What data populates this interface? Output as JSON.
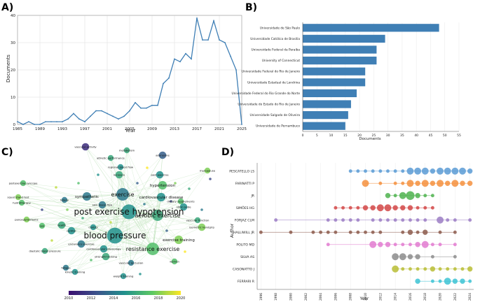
{
  "panels": {
    "A": "A)",
    "B": "B)",
    "C": "C)",
    "D": "D)"
  },
  "chart_data": [
    {
      "type": "line",
      "panel": "A",
      "xlabel": "Year",
      "ylabel": "Documents",
      "xlim": [
        1985,
        2025
      ],
      "ylim": [
        0,
        40
      ],
      "xticks": [
        1985,
        1989,
        1993,
        1997,
        2001,
        2005,
        2009,
        2013,
        2017,
        2021,
        2025
      ],
      "yticks": [
        0,
        10,
        20,
        30,
        40
      ],
      "grid": true,
      "color": "#3f7fb5",
      "x": [
        1985,
        1986,
        1987,
        1988,
        1989,
        1990,
        1991,
        1992,
        1993,
        1994,
        1995,
        1996,
        1997,
        1998,
        1999,
        2000,
        2001,
        2002,
        2003,
        2004,
        2005,
        2006,
        2007,
        2008,
        2009,
        2010,
        2011,
        2012,
        2013,
        2014,
        2015,
        2016,
        2017,
        2018,
        2019,
        2020,
        2021,
        2022,
        2023,
        2024,
        2025
      ],
      "y": [
        1,
        0,
        1,
        0,
        0,
        1,
        1,
        1,
        1,
        2,
        4,
        2,
        1,
        3,
        5,
        5,
        4,
        3,
        2,
        3,
        5,
        8,
        6,
        6,
        7,
        7,
        15,
        17,
        24,
        23,
        26,
        24,
        39,
        31,
        31,
        38,
        31,
        30,
        25,
        20,
        0
      ]
    },
    {
      "type": "bar",
      "orientation": "horizontal",
      "panel": "B",
      "xlabel": "Documents",
      "xlim": [
        0,
        55
      ],
      "xticks": [
        0,
        5,
        10,
        15,
        20,
        25,
        30,
        35,
        40,
        45,
        50,
        55
      ],
      "color": "#3f7fb5",
      "categories": [
        "Universidade de São Paulo",
        "Universidade Católica de Brasília",
        "Universidade Federal da Paraíba",
        "University of Connecticut",
        "Universidade Federal do Rio de Janeiro",
        "Universidade Estadual de Londrina",
        "Universidade Federal do Rio Grande do Norte",
        "Universidade do Estado do Rio de Janeiro",
        "Universidade Salgado de Oliveira",
        "Universidade de Pernambuco"
      ],
      "values": [
        48,
        29,
        26,
        26,
        22,
        22,
        19,
        17,
        16,
        15
      ]
    },
    {
      "type": "scatter",
      "subtype": "keyword-network",
      "panel": "C",
      "colorbar": {
        "min": 2010,
        "max": 2020,
        "ticks": [
          2010,
          2012,
          2014,
          2016,
          2018,
          2020
        ]
      },
      "nodes": [
        {
          "label": "vascular activity",
          "year": 2011,
          "weight": 2
        },
        {
          "label": "metabolism",
          "year": 2016,
          "weight": 1
        },
        {
          "label": "adenosine",
          "year": 2013,
          "weight": 2
        },
        {
          "label": "athletic performance",
          "year": 2016,
          "weight": 1
        },
        {
          "label": "regional blood flow",
          "year": 2015,
          "weight": 1
        },
        {
          "label": "recovery",
          "year": 2016,
          "weight": 2
        },
        {
          "label": "post exercise",
          "year": 2015,
          "weight": 2
        },
        {
          "label": "menopause",
          "year": 2018,
          "weight": 1
        },
        {
          "label": "hypertension",
          "year": 2017,
          "weight": 3
        },
        {
          "label": "postexercise syncope",
          "year": 2017,
          "weight": 1
        },
        {
          "label": "sympathetic",
          "year": 2014,
          "weight": 3
        },
        {
          "label": "exercise",
          "year": 2014,
          "weight": 8
        },
        {
          "label": "cardiovascular disease",
          "year": 2015,
          "weight": 3
        },
        {
          "label": "dietary supplements",
          "year": 2017,
          "weight": 1
        },
        {
          "label": "squat stand test",
          "year": 2018,
          "weight": 1
        },
        {
          "label": "hydrotherapy",
          "year": 2017,
          "weight": 1
        },
        {
          "label": "tetany",
          "year": 2014,
          "weight": 1
        },
        {
          "label": "skin blood flow",
          "year": 2014,
          "weight": 2
        },
        {
          "label": "nitric oxide",
          "year": 2015,
          "weight": 2
        },
        {
          "label": "post exercise hypotension",
          "year": 2015,
          "weight": 12
        },
        {
          "label": "aerobic exercise",
          "year": 2016,
          "weight": 6
        },
        {
          "label": "vascular function",
          "year": 2016,
          "weight": 1
        },
        {
          "label": "panoxyproxifaxtic",
          "year": 2018,
          "weight": 1
        },
        {
          "label": "health",
          "year": 2016,
          "weight": 2
        },
        {
          "label": "isometric handgrip",
          "year": 2018,
          "weight": 2
        },
        {
          "label": "cardiac",
          "year": 2015,
          "weight": 2
        },
        {
          "label": "sex",
          "year": 2017,
          "weight": 1
        },
        {
          "label": "blood pressure",
          "year": 2015,
          "weight": 14
        },
        {
          "label": "endurance exercise",
          "year": 2014,
          "weight": 2
        },
        {
          "label": "exercise training",
          "year": 2018,
          "weight": 3
        },
        {
          "label": "cardiovascular physiology",
          "year": 2015,
          "weight": 2
        },
        {
          "label": "resistance exercise",
          "year": 2017,
          "weight": 8
        },
        {
          "label": "diastolic blood pressure",
          "year": 2016,
          "weight": 1
        },
        {
          "label": "strength training",
          "year": 2016,
          "weight": 2
        },
        {
          "label": "vascular occlusion",
          "year": 2014,
          "weight": 1
        },
        {
          "label": "women",
          "year": 2017,
          "weight": 1
        },
        {
          "label": "fatigue",
          "year": 2014,
          "weight": 1
        },
        {
          "label": "kinetic training",
          "year": 2015,
          "weight": 1
        },
        {
          "label": "weight training",
          "year": 2015,
          "weight": 1
        },
        {
          "label": "control",
          "year": 2015,
          "weight": 1
        }
      ]
    },
    {
      "type": "scatter",
      "subtype": "author-timeline",
      "panel": "D",
      "xlabel": "Year",
      "ylabel": "Author",
      "xlim": [
        1995.5,
        2024.5
      ],
      "xticks": [
        1996,
        1998,
        2000,
        2002,
        2004,
        2006,
        2008,
        2010,
        2012,
        2014,
        2016,
        2018,
        2020,
        2022,
        2024
      ],
      "series": [
        {
          "name": "PESCATELLO LS",
          "color": "#5b9bd5",
          "years": [
            2008,
            2009,
            2010,
            2011,
            2012,
            2013,
            2014,
            2015,
            2016,
            2017,
            2018,
            2019,
            2020,
            2021,
            2022,
            2023,
            2024
          ],
          "weights": [
            1,
            1,
            1,
            1,
            1,
            1,
            1,
            1,
            3,
            3,
            3,
            2,
            3,
            3,
            3,
            3,
            2
          ]
        },
        {
          "name": "FARINATTI P",
          "color": "#f5903e",
          "years": [
            2010,
            2012,
            2014,
            2015,
            2016,
            2017,
            2018,
            2019,
            2020,
            2021,
            2022,
            2023,
            2024
          ],
          "weights": [
            3,
            1,
            1,
            1,
            3,
            2,
            3,
            2,
            3,
            2,
            3,
            2,
            2
          ]
        },
        {
          "name": "JR",
          "color": "#4fb34f",
          "years": [
            2013,
            2014,
            2015,
            2016,
            2017,
            2018,
            2019
          ],
          "weights": [
            2,
            1,
            3,
            4,
            2,
            1,
            1
          ]
        },
        {
          "name": "SIMÕES HG",
          "color": "#d24646",
          "years": [
            2006,
            2007,
            2008,
            2009,
            2010,
            2011,
            2012,
            2013,
            2014,
            2015,
            2016,
            2017,
            2018,
            2019
          ],
          "weights": [
            1,
            1,
            1,
            1,
            2,
            2,
            3,
            3,
            2,
            2,
            2,
            1,
            1,
            1
          ]
        },
        {
          "name": "FORJAZ CLM",
          "color": "#9b7dc4",
          "years": [
            1998,
            2005,
            2006,
            2007,
            2008,
            2009,
            2011,
            2012,
            2013,
            2014,
            2015,
            2016,
            2017,
            2018,
            2020,
            2021,
            2022,
            2024
          ],
          "weights": [
            1,
            1,
            1,
            1,
            1,
            1,
            1,
            1,
            1,
            1,
            1,
            1,
            1,
            1,
            3,
            1,
            1,
            1
          ]
        },
        {
          "name": "HALLIWILL JR",
          "color": "#8c5a4c",
          "years": [
            1996,
            2000,
            2003,
            2004,
            2005,
            2006,
            2008,
            2009,
            2010,
            2011,
            2012,
            2015,
            2016,
            2017,
            2018,
            2020,
            2022
          ],
          "weights": [
            1,
            1,
            1,
            1,
            1,
            1,
            1,
            1,
            1,
            1,
            1,
            1,
            2,
            1,
            2,
            1,
            1
          ]
        },
        {
          "name": "POLITO MD",
          "color": "#e27bd0",
          "years": [
            2005,
            2011,
            2012,
            2013,
            2014,
            2015,
            2016,
            2017,
            2018,
            2019,
            2020,
            2022
          ],
          "weights": [
            1,
            3,
            2,
            2,
            1,
            1,
            1,
            2,
            3,
            1,
            1,
            1
          ]
        },
        {
          "name": "SILVA AS",
          "color": "#8c8c8c",
          "years": [
            2014,
            2015,
            2016,
            2017,
            2019,
            2022
          ],
          "weights": [
            3,
            3,
            2,
            2,
            1,
            1
          ]
        },
        {
          "name": "CASONATTO J",
          "color": "#b8bd35",
          "years": [
            2014,
            2015,
            2016,
            2017,
            2018,
            2019,
            2020,
            2021,
            2022,
            2023,
            2024
          ],
          "weights": [
            3,
            1,
            1,
            1,
            1,
            2,
            1,
            1,
            1,
            1,
            2
          ]
        },
        {
          "name": "FERRARI R",
          "color": "#3dc3d3",
          "years": [
            2017,
            2019,
            2020,
            2021,
            2022,
            2023,
            2024
          ],
          "weights": [
            2,
            1,
            1,
            3,
            2,
            2,
            1
          ]
        }
      ]
    }
  ]
}
